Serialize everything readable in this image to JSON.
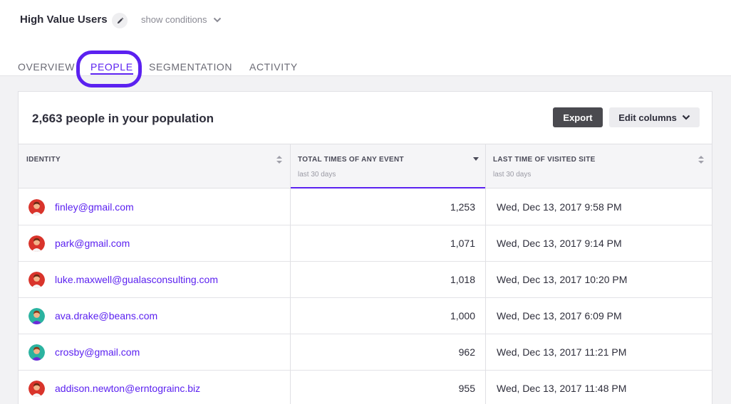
{
  "header": {
    "title": "High Value Users",
    "show_conditions": "show conditions"
  },
  "tabs": [
    {
      "label": "OVERVIEW",
      "active": false
    },
    {
      "label": "PEOPLE",
      "active": true
    },
    {
      "label": "SEGMENTATION",
      "active": false
    },
    {
      "label": "ACTIVITY",
      "active": false
    }
  ],
  "panel": {
    "population_title": "2,663 people in your population",
    "export_label": "Export",
    "edit_columns_label": "Edit columns"
  },
  "table": {
    "columns": [
      {
        "label": "IDENTITY",
        "sub": ""
      },
      {
        "label": "TOTAL TIMES OF ANY EVENT",
        "sub": "last 30 days"
      },
      {
        "label": "LAST TIME OF VISITED SITE",
        "sub": "last 30 days"
      }
    ],
    "rows": [
      {
        "email": "finley@gmail.com",
        "count": "1,253",
        "last_visit": "Wed, Dec 13, 2017 9:58 PM",
        "avatar": "red"
      },
      {
        "email": "park@gmail.com",
        "count": "1,071",
        "last_visit": "Wed, Dec 13, 2017 9:14 PM",
        "avatar": "red"
      },
      {
        "email": "luke.maxwell@gualasconsulting.com",
        "count": "1,018",
        "last_visit": "Wed, Dec 13, 2017 10:20 PM",
        "avatar": "red"
      },
      {
        "email": "ava.drake@beans.com",
        "count": "1,000",
        "last_visit": "Wed, Dec 13, 2017 6:09 PM",
        "avatar": "teal"
      },
      {
        "email": "crosby@gmail.com",
        "count": "962",
        "last_visit": "Wed, Dec 13, 2017 11:21 PM",
        "avatar": "teal"
      },
      {
        "email": "addison.newton@erntograinc.biz",
        "count": "955",
        "last_visit": "Wed, Dec 13, 2017 11:48 PM",
        "avatar": "red"
      }
    ]
  },
  "colors": {
    "accent": "#5b21f0",
    "avatar_red": "#d9342b",
    "avatar_teal": "#2bb3a0"
  }
}
